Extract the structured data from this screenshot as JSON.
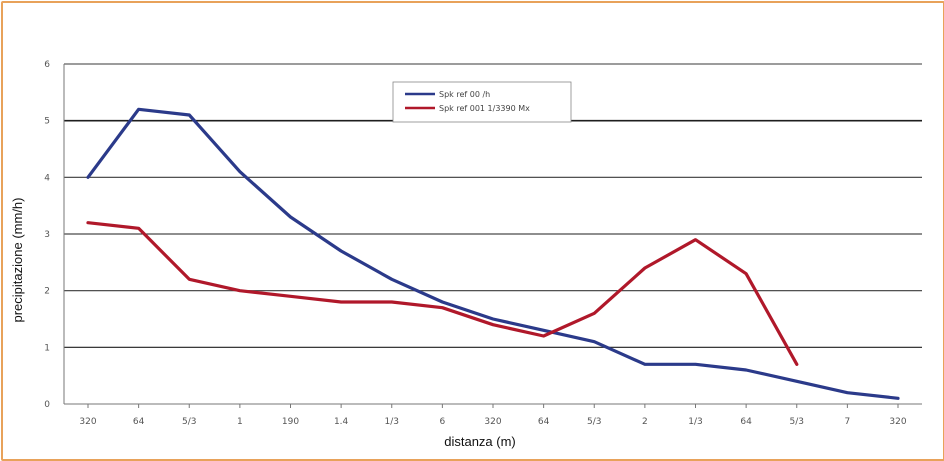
{
  "chart_data": {
    "type": "line",
    "title": "",
    "xlabel": "distanza  (m)",
    "ylabel": "precipitazione (mm/h)",
    "categories": [
      "320",
      "64",
      "5/3",
      "1",
      "190",
      "1.4",
      "1/3",
      "6",
      "320",
      "64",
      "5/3",
      "2",
      "1/3",
      "64",
      "5/3",
      "7",
      "320"
    ],
    "y_tick_labels": [
      "0",
      "1",
      "2",
      "3",
      "4",
      "5",
      "6"
    ],
    "ylim": [
      0,
      6
    ],
    "grid": true,
    "legend_position": "top-center",
    "series": [
      {
        "name": "Spk ref 00 /h",
        "color": "#2b3a8a",
        "values": [
          4.0,
          5.2,
          5.1,
          4.1,
          3.3,
          2.7,
          2.2,
          1.8,
          1.5,
          1.3,
          1.1,
          0.7,
          0.7,
          0.6,
          0.4,
          0.2,
          0.1
        ]
      },
      {
        "name": "Spk ref 001 1/3390 Mx",
        "color": "#b0182a",
        "values": [
          3.2,
          3.1,
          2.2,
          2.0,
          1.9,
          1.8,
          1.8,
          1.7,
          1.4,
          1.2,
          1.6,
          2.4,
          2.9,
          2.3,
          0.7,
          null,
          null
        ]
      }
    ]
  }
}
